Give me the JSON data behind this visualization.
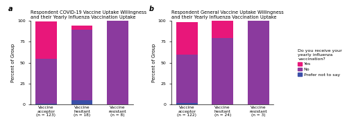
{
  "panel_a": {
    "title": "Respondent COVID-19 Vaccine Uptake Willingness\nand their Yearly Influenza Vaccination Uptake",
    "categories": [
      "Vaccine\nacceptor\n(n = 123)",
      "Vaccine\nhesitant\n(n = 18)",
      "Vaccine\nresistant\n(n = 8)"
    ],
    "yes": [
      44.7,
      5.6,
      0.0
    ],
    "no": [
      54.5,
      88.9,
      100.0
    ],
    "prefer": [
      0.8,
      5.5,
      0.0
    ]
  },
  "panel_b": {
    "title": "Respondent General Vaccine Uptake Willingness\nand their Yearly Influenza Vaccination Uptake",
    "categories": [
      "Vaccine\nacceptor\n(n = 122)",
      "Vaccine\nhesitant\n(n = 24)",
      "Vaccine\nresistant\n(n = 3)"
    ],
    "yes": [
      38.5,
      20.8,
      0.0
    ],
    "no": [
      59.8,
      79.2,
      100.0
    ],
    "prefer": [
      1.7,
      0.0,
      0.0
    ]
  },
  "colors": {
    "yes": "#E8177A",
    "no": "#8B3A9E",
    "prefer": "#3B4FA8"
  },
  "ylabel": "Percent of Group",
  "ylim": [
    0,
    100
  ],
  "yticks": [
    0,
    25,
    50,
    75,
    100
  ],
  "legend_title": "Do you receive your\nyearly influenza\nvaccination?",
  "legend_labels": [
    "Yes",
    "No",
    "Prefer not to say"
  ],
  "bar_width": 0.6,
  "label_a": "a",
  "label_b": "b"
}
